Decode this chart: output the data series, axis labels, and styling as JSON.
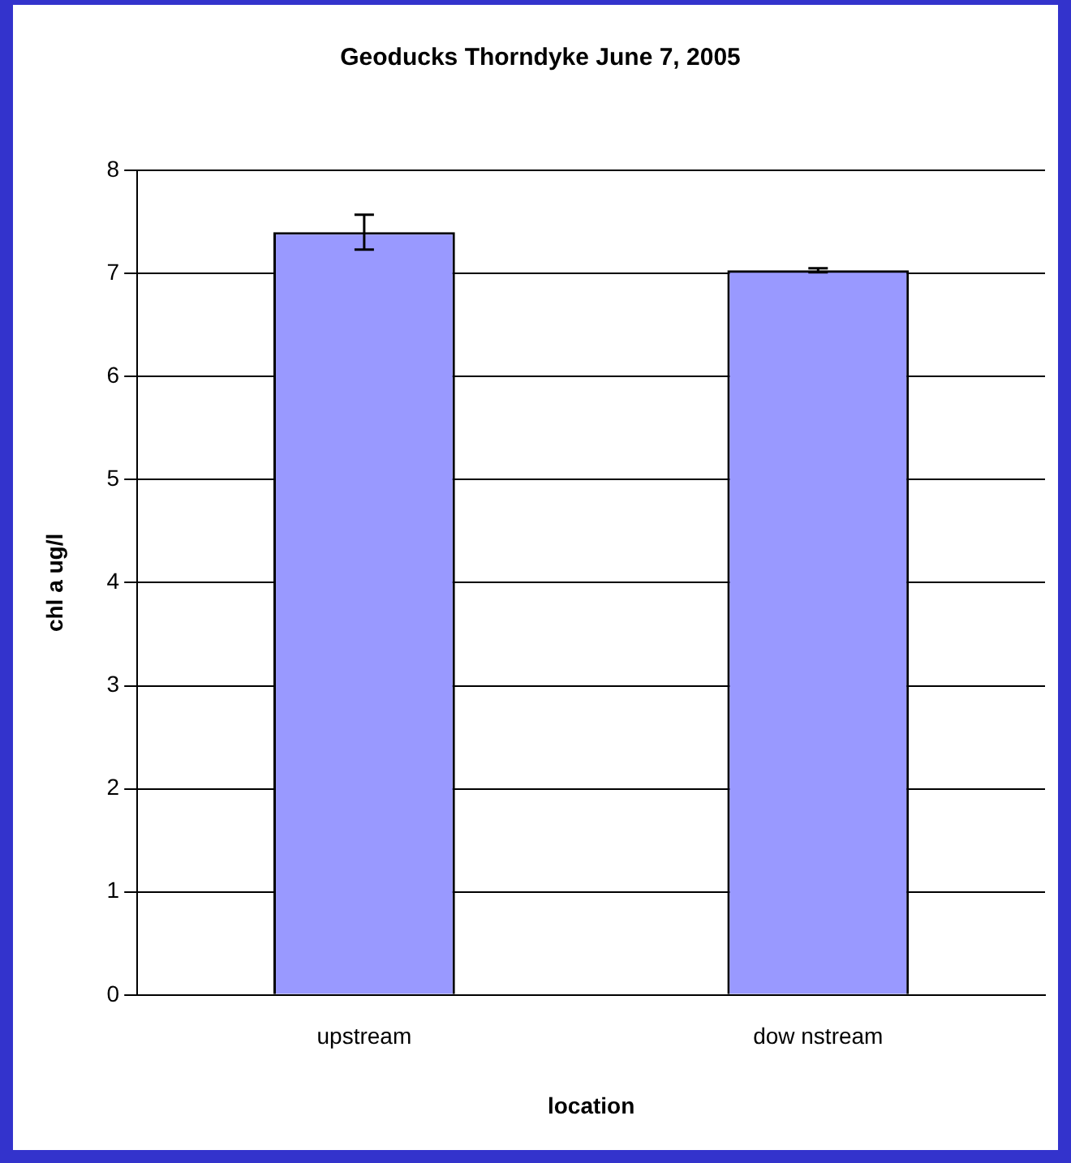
{
  "chart_data": {
    "type": "bar",
    "title": "Geoducks Thorndyke June 7, 2005",
    "xlabel": "location",
    "ylabel": "chl a ug/l",
    "categories": [
      "upstream",
      "dow nstream"
    ],
    "values": [
      7.4,
      7.03
    ],
    "errors": [
      0.17,
      0.02
    ],
    "color": "#9999ff",
    "ylim": [
      0,
      8
    ],
    "yticks": [
      0,
      1,
      2,
      3,
      4,
      5,
      6,
      7,
      8
    ],
    "grid": "y",
    "legend": false
  }
}
